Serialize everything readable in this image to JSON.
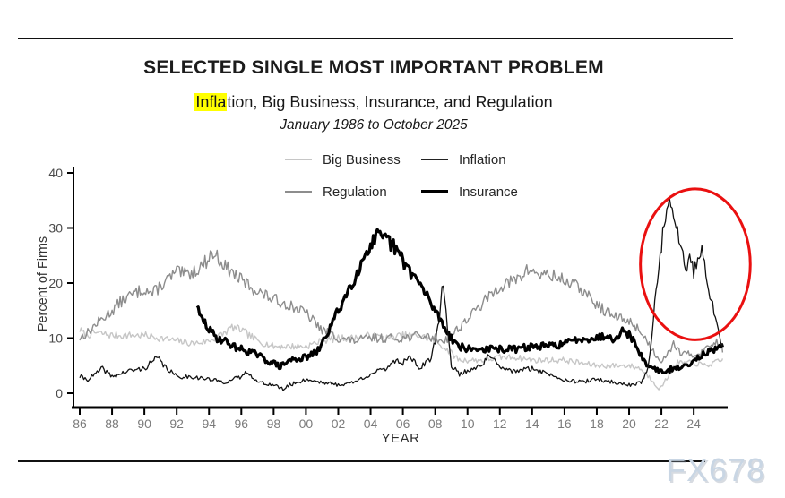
{
  "page": {
    "title": "SELECTED SINGLE MOST IMPORTANT PROBLEM",
    "subtitle_highlight": "Infla",
    "subtitle_rest": "tion, Big Business, Insurance, and Regulation",
    "date_range": "January 1986 to October 2025",
    "watermark": "FX678",
    "watermark_color": "#c9d6e4",
    "highlight_color": "#ffff00"
  },
  "legend": {
    "position": "top-center, 2 columns x 2 rows",
    "items": [
      {
        "label": "Big Business",
        "color": "#c6c6c6",
        "weight": 2
      },
      {
        "label": "Inflation",
        "color": "#222222",
        "weight": 2
      },
      {
        "label": "Regulation",
        "color": "#8d8d8d",
        "weight": 2
      },
      {
        "label": "Insurance",
        "color": "#000000",
        "weight": 4
      }
    ]
  },
  "chart_data": {
    "type": "line",
    "title": "SELECTED SINGLE MOST IMPORTANT PROBLEM",
    "subtitle": "Inflation, Big Business, Insurance, and Regulation",
    "period": "January 1986 to October 2025",
    "xlabel": "YEAR",
    "ylabel": "Percent of Firms",
    "xlim": [
      1986,
      2025.83
    ],
    "ylim": [
      0,
      40
    ],
    "grid": false,
    "x_tick_labels": [
      "86",
      "88",
      "90",
      "92",
      "94",
      "96",
      "98",
      "00",
      "02",
      "04",
      "06",
      "08",
      "10",
      "12",
      "14",
      "16",
      "18",
      "20",
      "22",
      "24"
    ],
    "y_ticks": [
      0,
      10,
      20,
      30,
      40
    ],
    "annotation_ellipse": {
      "comment": "red ellipse circling 2021-2025 inflation spike",
      "center_year": 2024.1,
      "center_value": 23.4,
      "rx_years": 3.4,
      "ry_units": 13.7,
      "color": "#ea1010"
    },
    "series": [
      {
        "name": "Big Business",
        "color": "#c6c6c6",
        "width": 1.4,
        "points": [
          [
            1986,
            11.5
          ],
          [
            1986.4,
            10.5
          ],
          [
            1987,
            11
          ],
          [
            1988,
            10.5
          ],
          [
            1989,
            10.5
          ],
          [
            1990,
            10.5
          ],
          [
            1991,
            10
          ],
          [
            1992,
            9.5
          ],
          [
            1993,
            9
          ],
          [
            1994,
            9.5
          ],
          [
            1995,
            11
          ],
          [
            1995.4,
            12
          ],
          [
            1996,
            11.5
          ],
          [
            1997,
            9.5
          ],
          [
            1998,
            8.5
          ],
          [
            1999,
            8.5
          ],
          [
            2000,
            8.5
          ],
          [
            2001,
            9.5
          ],
          [
            2002,
            10
          ],
          [
            2003,
            10
          ],
          [
            2004,
            10.5
          ],
          [
            2005,
            10
          ],
          [
            2006,
            10.5
          ],
          [
            2007,
            10.5
          ],
          [
            2008,
            9.5
          ],
          [
            2008.7,
            8
          ],
          [
            2009.5,
            6
          ],
          [
            2010,
            6
          ],
          [
            2011,
            6
          ],
          [
            2012,
            6.5
          ],
          [
            2013,
            6.5
          ],
          [
            2014,
            6
          ],
          [
            2015,
            6
          ],
          [
            2016,
            6
          ],
          [
            2017,
            5.5
          ],
          [
            2018,
            5
          ],
          [
            2019,
            5
          ],
          [
            2020,
            5
          ],
          [
            2020.7,
            4.5
          ],
          [
            2021.4,
            2.5
          ],
          [
            2021.9,
            0.7
          ],
          [
            2022.3,
            2.5
          ],
          [
            2022.7,
            4.5
          ],
          [
            2023,
            5.5
          ],
          [
            2024,
            5.5
          ],
          [
            2024.7,
            5
          ],
          [
            2025.3,
            5.5
          ],
          [
            2025.79,
            6
          ]
        ]
      },
      {
        "name": "Regulation",
        "color": "#8d8d8d",
        "width": 1.4,
        "points": [
          [
            1986,
            10
          ],
          [
            1986.5,
            11
          ],
          [
            1987,
            12.5
          ],
          [
            1988,
            15
          ],
          [
            1988.5,
            16.5
          ],
          [
            1989,
            17.5
          ],
          [
            1990,
            19
          ],
          [
            1990.5,
            18
          ],
          [
            1991,
            19.5
          ],
          [
            1992,
            22
          ],
          [
            1992.5,
            21.5
          ],
          [
            1993,
            22
          ],
          [
            1993.7,
            23.5
          ],
          [
            1994.2,
            25.5
          ],
          [
            1994.6,
            24.5
          ],
          [
            1995,
            23
          ],
          [
            1996,
            20.5
          ],
          [
            1997,
            18.5
          ],
          [
            1998,
            17
          ],
          [
            1999,
            16
          ],
          [
            2000,
            14.5
          ],
          [
            2000.5,
            13
          ],
          [
            2001,
            11.5
          ],
          [
            2002,
            10
          ],
          [
            2003,
            9.5
          ],
          [
            2004,
            10
          ],
          [
            2005,
            10
          ],
          [
            2006,
            10
          ],
          [
            2007,
            10.5
          ],
          [
            2008,
            10
          ],
          [
            2008.5,
            9.5
          ],
          [
            2009,
            10.5
          ],
          [
            2010,
            13.5
          ],
          [
            2011,
            16.5
          ],
          [
            2012,
            19.5
          ],
          [
            2013,
            20.5
          ],
          [
            2013.8,
            22.5
          ],
          [
            2014.5,
            21.5
          ],
          [
            2015,
            21.5
          ],
          [
            2016,
            20.5
          ],
          [
            2017,
            19
          ],
          [
            2017.5,
            17.5
          ],
          [
            2018,
            16
          ],
          [
            2019,
            14
          ],
          [
            2020,
            13
          ],
          [
            2020.5,
            12
          ],
          [
            2021,
            10
          ],
          [
            2021.5,
            7.5
          ],
          [
            2022,
            6
          ],
          [
            2022.8,
            9
          ],
          [
            2023.3,
            7
          ],
          [
            2024,
            7
          ],
          [
            2024.5,
            7.5
          ],
          [
            2025,
            8.5
          ],
          [
            2025.4,
            9.5
          ],
          [
            2025.79,
            8
          ]
        ]
      },
      {
        "name": "Insurance",
        "color": "#000000",
        "width": 3.2,
        "points": [
          [
            1993.25,
            16
          ],
          [
            1993.4,
            14
          ],
          [
            1993.7,
            13
          ],
          [
            1994,
            11.5
          ],
          [
            1994.5,
            10
          ],
          [
            1995,
            9.5
          ],
          [
            1995.5,
            8.5
          ],
          [
            1996,
            8
          ],
          [
            1997,
            7
          ],
          [
            1997.5,
            6
          ],
          [
            1998,
            5.5
          ],
          [
            1998.4,
            4.8
          ],
          [
            1999,
            6
          ],
          [
            2000,
            6.5
          ],
          [
            2000.7,
            7.5
          ],
          [
            2001,
            9
          ],
          [
            2001.5,
            12
          ],
          [
            2002,
            15
          ],
          [
            2002.5,
            18
          ],
          [
            2003,
            21
          ],
          [
            2003.5,
            24
          ],
          [
            2003.8,
            26.5
          ],
          [
            2004,
            26.5
          ],
          [
            2004.4,
            28.5
          ],
          [
            2004.8,
            27.5
          ],
          [
            2005,
            28
          ],
          [
            2005.3,
            27
          ],
          [
            2005.7,
            25.5
          ],
          [
            2006,
            24
          ],
          [
            2006.5,
            22
          ],
          [
            2007,
            20
          ],
          [
            2007.5,
            17.5
          ],
          [
            2008,
            15
          ],
          [
            2008.5,
            12.5
          ],
          [
            2009,
            10
          ],
          [
            2009.5,
            8.5
          ],
          [
            2010,
            8
          ],
          [
            2011,
            8
          ],
          [
            2012,
            8
          ],
          [
            2013,
            8
          ],
          [
            2014,
            8.5
          ],
          [
            2015,
            8.5
          ],
          [
            2016,
            9
          ],
          [
            2017,
            10
          ],
          [
            2018,
            10
          ],
          [
            2018.5,
            10.5
          ],
          [
            2019,
            10
          ],
          [
            2019.7,
            11.5
          ],
          [
            2020.2,
            10
          ],
          [
            2020.7,
            7
          ],
          [
            2021,
            5.5
          ],
          [
            2021.5,
            4.5
          ],
          [
            2022,
            4
          ],
          [
            2022.3,
            3.5
          ],
          [
            2022.6,
            4.5
          ],
          [
            2023,
            4.5
          ],
          [
            2023.5,
            5
          ],
          [
            2024,
            6
          ],
          [
            2024.5,
            7
          ],
          [
            2025,
            7.5
          ],
          [
            2025.5,
            8
          ],
          [
            2025.79,
            8.3
          ]
        ]
      },
      {
        "name": "Inflation",
        "color": "#111111",
        "width": 1.3,
        "points": [
          [
            1986,
            3
          ],
          [
            1986.5,
            2.5
          ],
          [
            1987,
            3.5
          ],
          [
            1987.4,
            4.5
          ],
          [
            1988,
            3
          ],
          [
            1989,
            4
          ],
          [
            1990,
            4.5
          ],
          [
            1990.8,
            6.5
          ],
          [
            1991.2,
            5
          ],
          [
            1992,
            3
          ],
          [
            1993,
            3
          ],
          [
            1994,
            2.5
          ],
          [
            1995,
            2
          ],
          [
            1996,
            3
          ],
          [
            1996.4,
            4
          ],
          [
            1997,
            2
          ],
          [
            1998,
            1.5
          ],
          [
            1998.6,
            0.7
          ],
          [
            1999,
            1.5
          ],
          [
            2000,
            2.5
          ],
          [
            2001,
            2
          ],
          [
            2002,
            1.5
          ],
          [
            2003,
            2
          ],
          [
            2004,
            3.5
          ],
          [
            2005,
            4.5
          ],
          [
            2005.4,
            6
          ],
          [
            2006,
            5.5
          ],
          [
            2006.4,
            7
          ],
          [
            2007,
            4.5
          ],
          [
            2007.7,
            6
          ],
          [
            2008.2,
            12
          ],
          [
            2008.45,
            20
          ],
          [
            2008.7,
            14
          ],
          [
            2009,
            5
          ],
          [
            2009.5,
            3.5
          ],
          [
            2010,
            4
          ],
          [
            2011,
            5.5
          ],
          [
            2011.4,
            7
          ],
          [
            2012,
            4.5
          ],
          [
            2013,
            4
          ],
          [
            2014,
            4.5
          ],
          [
            2015,
            3.5
          ],
          [
            2016,
            2.5
          ],
          [
            2017,
            2
          ],
          [
            2018,
            2.5
          ],
          [
            2019,
            2
          ],
          [
            2020,
            1.5
          ],
          [
            2020.8,
            2
          ],
          [
            2021.2,
            5
          ],
          [
            2021.5,
            13
          ],
          [
            2021.8,
            23
          ],
          [
            2022,
            27
          ],
          [
            2022.2,
            31
          ],
          [
            2022.35,
            33.5
          ],
          [
            2022.45,
            37
          ],
          [
            2022.6,
            32
          ],
          [
            2022.8,
            33
          ],
          [
            2023,
            29
          ],
          [
            2023.3,
            25
          ],
          [
            2023.6,
            23
          ],
          [
            2023.8,
            24.5
          ],
          [
            2024,
            22
          ],
          [
            2024.3,
            25
          ],
          [
            2024.55,
            25.5
          ],
          [
            2024.8,
            20
          ],
          [
            2025,
            16.5
          ],
          [
            2025.15,
            16.5
          ],
          [
            2025.3,
            14
          ],
          [
            2025.5,
            12
          ],
          [
            2025.65,
            9.5
          ],
          [
            2025.79,
            8.5
          ]
        ]
      }
    ]
  }
}
